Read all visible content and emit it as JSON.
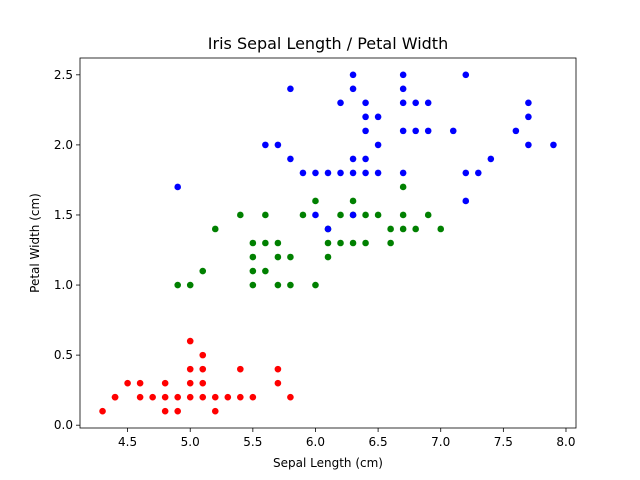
{
  "chart_data": {
    "type": "scatter",
    "title": "Iris Sepal Length / Petal Width",
    "xlabel": "Sepal Length (cm)",
    "ylabel": "Petal Width (cm)",
    "xlim": [
      4.12,
      8.08
    ],
    "ylim": [
      -0.02,
      2.62
    ],
    "xticks": [
      "4.5",
      "5.0",
      "5.5",
      "6.0",
      "6.5",
      "7.0",
      "7.5",
      "8.0"
    ],
    "yticks": [
      "0.0",
      "0.5",
      "1.0",
      "1.5",
      "2.0",
      "2.5"
    ],
    "grid": false,
    "series": [
      {
        "color": "#ff0000",
        "points": [
          [
            4.3,
            0.1
          ],
          [
            4.4,
            0.2
          ],
          [
            4.4,
            0.2
          ],
          [
            4.5,
            0.3
          ],
          [
            4.6,
            0.2
          ],
          [
            4.6,
            0.3
          ],
          [
            4.7,
            0.2
          ],
          [
            4.8,
            0.1
          ],
          [
            4.8,
            0.2
          ],
          [
            4.8,
            0.3
          ],
          [
            4.9,
            0.1
          ],
          [
            4.9,
            0.2
          ],
          [
            5.0,
            0.2
          ],
          [
            5.0,
            0.3
          ],
          [
            5.0,
            0.4
          ],
          [
            5.0,
            0.6
          ],
          [
            5.1,
            0.2
          ],
          [
            5.1,
            0.3
          ],
          [
            5.1,
            0.4
          ],
          [
            5.1,
            0.5
          ],
          [
            5.2,
            0.1
          ],
          [
            5.2,
            0.2
          ],
          [
            5.3,
            0.2
          ],
          [
            5.4,
            0.2
          ],
          [
            5.4,
            0.4
          ],
          [
            5.5,
            0.2
          ],
          [
            5.7,
            0.3
          ],
          [
            5.7,
            0.4
          ],
          [
            5.8,
            0.2
          ]
        ]
      },
      {
        "color": "#008000",
        "points": [
          [
            4.9,
            1.0
          ],
          [
            5.0,
            1.0
          ],
          [
            5.1,
            1.1
          ],
          [
            5.2,
            1.4
          ],
          [
            5.4,
            1.5
          ],
          [
            5.5,
            1.0
          ],
          [
            5.5,
            1.1
          ],
          [
            5.5,
            1.2
          ],
          [
            5.5,
            1.3
          ],
          [
            5.6,
            1.1
          ],
          [
            5.6,
            1.3
          ],
          [
            5.6,
            1.5
          ],
          [
            5.7,
            1.0
          ],
          [
            5.7,
            1.2
          ],
          [
            5.7,
            1.3
          ],
          [
            5.8,
            1.0
          ],
          [
            5.8,
            1.2
          ],
          [
            5.9,
            1.5
          ],
          [
            6.0,
            1.0
          ],
          [
            6.0,
            1.6
          ],
          [
            6.1,
            1.2
          ],
          [
            6.1,
            1.3
          ],
          [
            6.1,
            1.4
          ],
          [
            6.2,
            1.3
          ],
          [
            6.2,
            1.5
          ],
          [
            6.3,
            1.3
          ],
          [
            6.3,
            1.5
          ],
          [
            6.3,
            1.6
          ],
          [
            6.4,
            1.3
          ],
          [
            6.4,
            1.5
          ],
          [
            6.5,
            1.5
          ],
          [
            6.6,
            1.3
          ],
          [
            6.6,
            1.4
          ],
          [
            6.7,
            1.4
          ],
          [
            6.7,
            1.5
          ],
          [
            6.7,
            1.7
          ],
          [
            6.8,
            1.4
          ],
          [
            6.9,
            1.5
          ],
          [
            7.0,
            1.4
          ]
        ]
      },
      {
        "color": "#0000ff",
        "points": [
          [
            4.9,
            1.7
          ],
          [
            5.6,
            2.0
          ],
          [
            5.7,
            2.0
          ],
          [
            5.8,
            1.9
          ],
          [
            5.8,
            2.4
          ],
          [
            5.9,
            1.8
          ],
          [
            6.0,
            1.5
          ],
          [
            6.0,
            1.8
          ],
          [
            6.1,
            1.4
          ],
          [
            6.1,
            1.8
          ],
          [
            6.2,
            1.8
          ],
          [
            6.2,
            2.3
          ],
          [
            6.3,
            1.5
          ],
          [
            6.3,
            1.8
          ],
          [
            6.3,
            1.9
          ],
          [
            6.3,
            2.4
          ],
          [
            6.3,
            2.5
          ],
          [
            6.4,
            1.8
          ],
          [
            6.4,
            1.9
          ],
          [
            6.4,
            2.1
          ],
          [
            6.4,
            2.2
          ],
          [
            6.4,
            2.3
          ],
          [
            6.5,
            1.8
          ],
          [
            6.5,
            2.0
          ],
          [
            6.5,
            2.2
          ],
          [
            6.7,
            1.8
          ],
          [
            6.7,
            2.1
          ],
          [
            6.7,
            2.3
          ],
          [
            6.7,
            2.4
          ],
          [
            6.7,
            2.5
          ],
          [
            6.8,
            2.1
          ],
          [
            6.8,
            2.3
          ],
          [
            6.9,
            2.1
          ],
          [
            6.9,
            2.3
          ],
          [
            7.1,
            2.1
          ],
          [
            7.2,
            1.6
          ],
          [
            7.2,
            1.8
          ],
          [
            7.2,
            2.5
          ],
          [
            7.3,
            1.8
          ],
          [
            7.4,
            1.9
          ],
          [
            7.6,
            2.1
          ],
          [
            7.7,
            2.0
          ],
          [
            7.7,
            2.2
          ],
          [
            7.7,
            2.3
          ],
          [
            7.9,
            2.0
          ]
        ]
      }
    ]
  }
}
